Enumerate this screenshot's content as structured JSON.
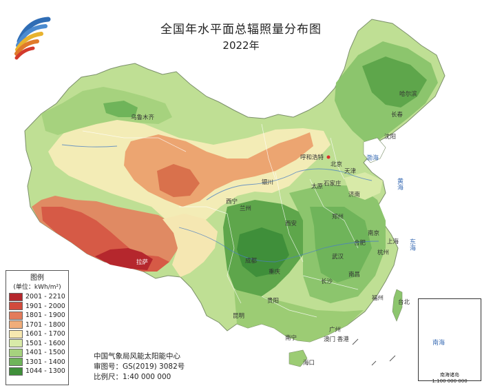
{
  "title": "全国年水平面总辐照量分布图",
  "subtitle": "2022年",
  "legend": {
    "title": "图例",
    "unit": "(单位：kWh/m²)",
    "classes": [
      {
        "label": "2001 - 2210",
        "color": "#b5272d"
      },
      {
        "label": "1901 - 2000",
        "color": "#d24b3c"
      },
      {
        "label": "1801 - 1900",
        "color": "#e37b5b"
      },
      {
        "label": "1701 - 1800",
        "color": "#f0ad7a"
      },
      {
        "label": "1601 - 1700",
        "color": "#f7e8b0"
      },
      {
        "label": "1501 - 1600",
        "color": "#d8eaa8"
      },
      {
        "label": "1401 - 1500",
        "color": "#a6d27e"
      },
      {
        "label": "1301 - 1400",
        "color": "#6fb45a"
      },
      {
        "label": "1044 - 1300",
        "color": "#3f8f3a"
      }
    ]
  },
  "credits": {
    "org": "中国气象局风能太阳能中心",
    "approval": "审图号：GS(2019) 3082号",
    "scale": "比例尺：1:40 000 000"
  },
  "inset": {
    "label": "南海诸岛",
    "scale": "1:100 000 000"
  },
  "cities": {
    "urumqi": "乌鲁木齐",
    "lhasa": "拉萨",
    "xining": "西宁",
    "lanzhou": "兰州",
    "yinchuan": "银川",
    "hohhot": "呼和浩特",
    "beijing": "北京",
    "tianjin": "天津",
    "shijiazhuang": "石家庄",
    "taiyuan": "太原",
    "jinan": "济南",
    "zhengzhou": "郑州",
    "xian": "西安",
    "chengdu": "成都",
    "chongqing": "重庆",
    "guiyang": "贵阳",
    "kunming": "昆明",
    "nanning": "南宁",
    "guangzhou": "广州",
    "haikou": "海口",
    "changsha": "长沙",
    "wuhan": "武汉",
    "nanchang": "南昌",
    "hefei": "合肥",
    "nanjing": "南京",
    "shanghai": "上海",
    "hangzhou": "杭州",
    "fuzhou": "福州",
    "taipei": "台北",
    "harbin": "哈尔滨",
    "changchun": "长春",
    "shenyang": "沈阳",
    "macau_hk": "澳门 香港"
  },
  "seas": {
    "bohai": "渤海",
    "yellow": "黄海",
    "east": "东海",
    "south": "南海"
  }
}
